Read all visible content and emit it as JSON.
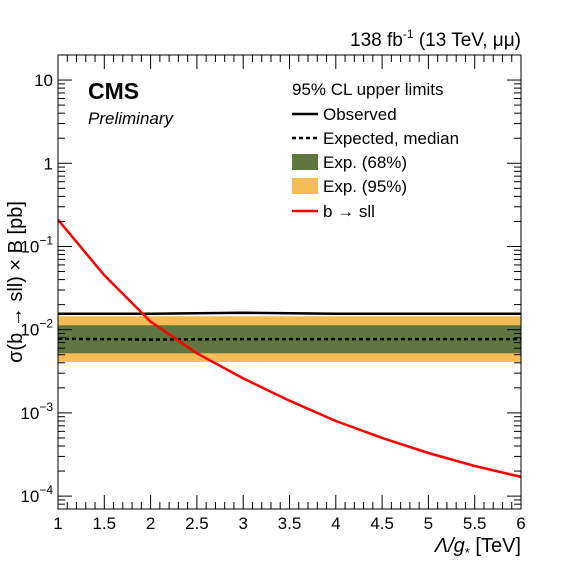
{
  "header": {
    "lumi": "138 fb",
    "lumi_exp": "-1",
    "energy": " (13 TeV, μμ)"
  },
  "cms_label": "CMS",
  "preliminary_label": "Preliminary",
  "chart_data": {
    "type": "line",
    "xlabel": "Λ/g",
    "xlabel_sub": "*",
    "xlabel_unit": " [TeV]",
    "ylabel": "σ(b → sll) × B [pb]",
    "xlim": [
      1,
      6
    ],
    "ylim": [
      7e-05,
      20
    ],
    "yscale": "log",
    "x_ticks": [
      1,
      1.5,
      2,
      2.5,
      3,
      3.5,
      4,
      4.5,
      5,
      5.5,
      6
    ],
    "x_tick_labels": [
      "1",
      "1.5",
      "2",
      "2.5",
      "3",
      "3.5",
      "4",
      "4.5",
      "5",
      "5.5",
      "6"
    ],
    "y_ticks": [
      0.0001,
      0.001,
      0.01,
      0.1,
      1,
      10
    ],
    "y_tick_labels": [
      {
        "base": "10",
        "exp": "−4"
      },
      {
        "base": "10",
        "exp": "−3"
      },
      {
        "base": "10",
        "exp": "−2"
      },
      {
        "base": "10",
        "exp": "−1"
      },
      {
        "base": "1",
        "exp": ""
      },
      {
        "base": "10",
        "exp": ""
      }
    ],
    "legend": {
      "title": "95% CL upper limits",
      "placement": "top-right",
      "entries": [
        {
          "label": "Observed",
          "style": "solid-black"
        },
        {
          "label": "Expected, median",
          "style": "dashed-black"
        },
        {
          "label": "Exp. (68%)",
          "style": "band-green"
        },
        {
          "label": "Exp. (95%)",
          "style": "band-yellow"
        },
        {
          "label": "b → sll",
          "style": "solid-red"
        }
      ]
    },
    "colors": {
      "observed": "#000000",
      "expected": "#000000",
      "band68": "#607641",
      "band95": "#F5BB54",
      "signal": "#FF0000"
    },
    "series": [
      {
        "name": "Observed",
        "x": [
          1,
          2,
          3,
          4,
          5,
          6
        ],
        "y": [
          0.0155,
          0.0155,
          0.016,
          0.0155,
          0.0155,
          0.0155
        ]
      },
      {
        "name": "Expected, median",
        "x": [
          1,
          2,
          3,
          4,
          5,
          6
        ],
        "y": [
          0.0078,
          0.0076,
          0.0077,
          0.0077,
          0.0077,
          0.0077
        ]
      },
      {
        "name": "Exp. (68%)",
        "x": [
          1,
          6
        ],
        "y_low": [
          0.0052,
          0.0052
        ],
        "y_high": [
          0.0113,
          0.0113
        ]
      },
      {
        "name": "Exp. (95%)",
        "x": [
          1,
          6
        ],
        "y_low": [
          0.0041,
          0.0041
        ],
        "y_high": [
          0.0145,
          0.0145
        ]
      },
      {
        "name": "b → sll",
        "x": [
          1,
          1.5,
          2,
          2.5,
          3,
          3.5,
          4,
          4.5,
          5,
          5.5,
          6
        ],
        "y": [
          0.21,
          0.045,
          0.0125,
          0.0052,
          0.0026,
          0.0014,
          0.0008,
          0.0005,
          0.00033,
          0.00023,
          0.00017
        ]
      }
    ]
  }
}
